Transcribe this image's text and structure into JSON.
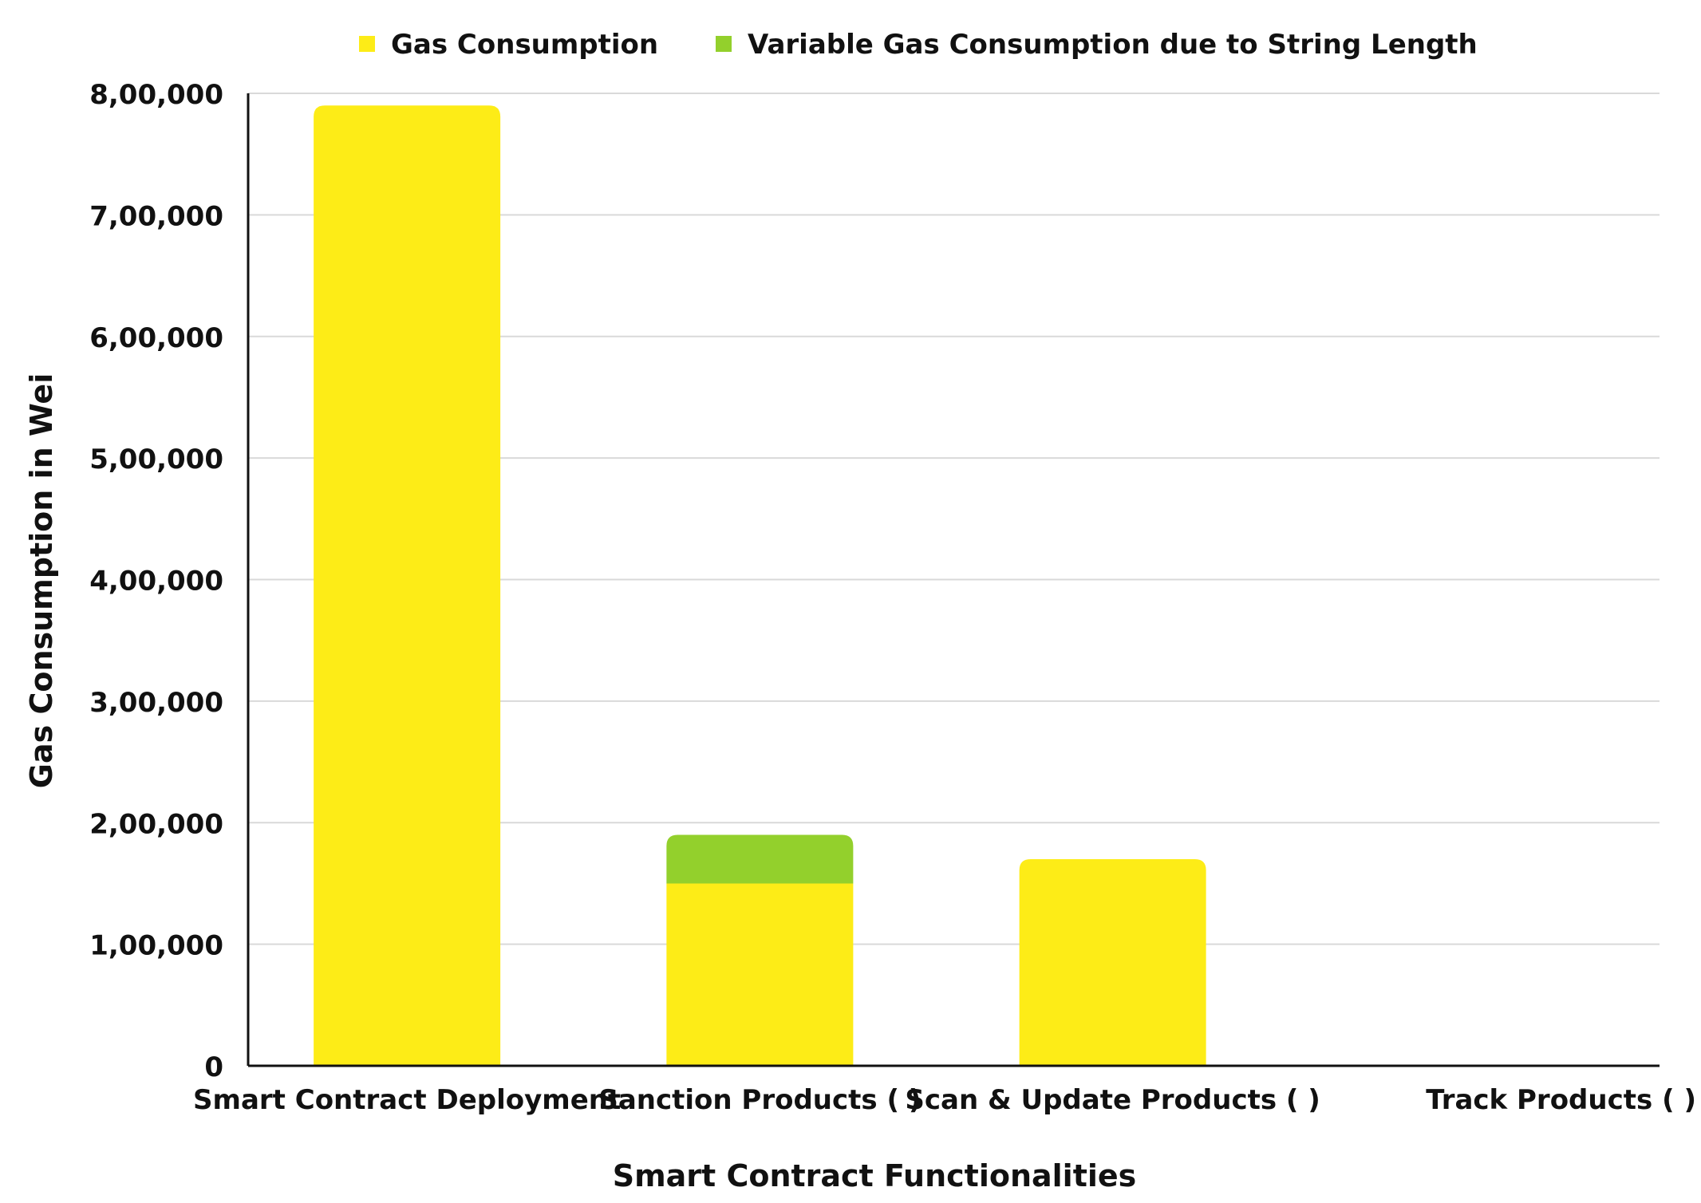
{
  "chart_data": {
    "type": "bar",
    "stacked": true,
    "title": "",
    "xlabel": "Smart Contract Functionalities",
    "ylabel": "Gas Consumption in Wei",
    "categories": [
      "Smart Contract Deployment",
      "Sanction Products ( )",
      "Scan & Update Products ( )",
      "Track Products ( )"
    ],
    "series": [
      {
        "name": "Gas Consumption",
        "color": "#fdec17",
        "values": [
          790000,
          150000,
          170000,
          0
        ]
      },
      {
        "name": "Variable Gas Consumption due to String Length",
        "color": "#93d02c",
        "values": [
          0,
          40000,
          0,
          0
        ]
      }
    ],
    "ylim": [
      0,
      800000
    ],
    "yticks": [
      0,
      100000,
      200000,
      300000,
      400000,
      500000,
      600000,
      700000,
      800000
    ],
    "ytick_labels": [
      "0",
      "1,00,000",
      "2,00,000",
      "3,00,000",
      "4,00,000",
      "5,00,000",
      "6,00,000",
      "7,00,000",
      "8,00,000"
    ],
    "grid": true,
    "legend_position": "top-center"
  }
}
